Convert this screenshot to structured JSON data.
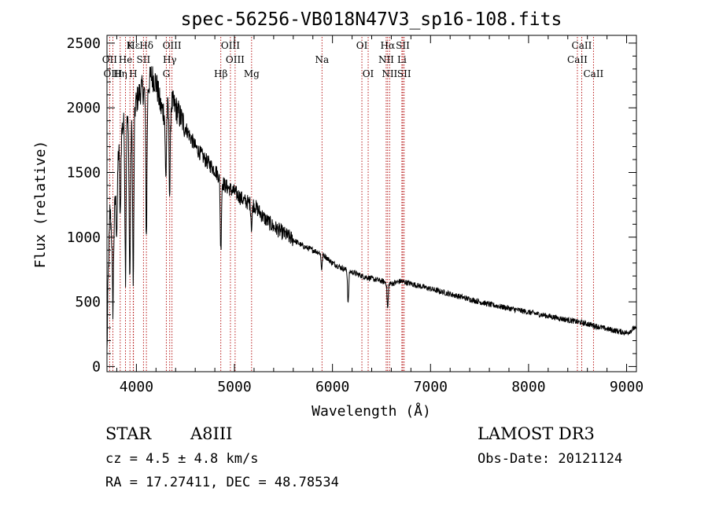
{
  "chart_data": {
    "type": "line",
    "title": "spec-56256-VB018N47V3_sp16-108.fits",
    "xlabel": "Wavelength (Å)",
    "ylabel": "Flux (relative)",
    "xlim": [
      3700,
      9100
    ],
    "ylim": [
      -40,
      2560
    ],
    "xticks": [
      4000,
      5000,
      6000,
      7000,
      8000,
      9000
    ],
    "yticks": [
      0,
      500,
      1000,
      1500,
      2000,
      2500
    ],
    "spectrum_trend": {
      "x": [
        3700,
        3710,
        3730,
        3760,
        3800,
        3830,
        3860,
        3900,
        3930,
        3960,
        4000,
        4050,
        4100,
        4150,
        4200,
        4250,
        4300,
        4350,
        4400,
        4500,
        4600,
        4700,
        4800,
        4860,
        4900,
        5000,
        5100,
        5200,
        5300,
        5400,
        5500,
        5600,
        5700,
        5800,
        5900,
        6000,
        6100,
        6200,
        6300,
        6400,
        6500,
        6600,
        6700,
        6800,
        6900,
        7000,
        7200,
        7400,
        7600,
        7800,
        8000,
        8200,
        8400,
        8600,
        8800,
        9000,
        9050,
        9080,
        9100
      ],
      "y": [
        100,
        600,
        1200,
        950,
        1500,
        1800,
        1850,
        1950,
        1750,
        1900,
        2050,
        2150,
        2100,
        2250,
        2200,
        2000,
        1950,
        2050,
        2000,
        1850,
        1700,
        1600,
        1520,
        1450,
        1400,
        1350,
        1280,
        1250,
        1150,
        1080,
        1030,
        980,
        930,
        900,
        870,
        800,
        760,
        730,
        700,
        680,
        660,
        640,
        660,
        640,
        620,
        600,
        560,
        520,
        480,
        450,
        420,
        390,
        360,
        330,
        290,
        260,
        280,
        300,
        280
      ]
    },
    "absorption_lines": [
      {
        "x": 3760,
        "depth": 500
      },
      {
        "x": 3800,
        "depth": 450
      },
      {
        "x": 3835,
        "depth": 700
      },
      {
        "x": 3889,
        "depth": 1200
      },
      {
        "x": 3933,
        "depth": 1100
      },
      {
        "x": 3968,
        "depth": 1300
      },
      {
        "x": 4102,
        "depth": 1100
      },
      {
        "x": 4300,
        "depth": 500
      },
      {
        "x": 4340,
        "depth": 700
      },
      {
        "x": 4861,
        "depth": 550
      },
      {
        "x": 5175,
        "depth": 180
      },
      {
        "x": 5890,
        "depth": 120
      },
      {
        "x": 6160,
        "depth": 250
      },
      {
        "x": 6563,
        "depth": 200
      }
    ],
    "line_markers": [
      {
        "label": "Hε",
        "x": 3970,
        "row": 0
      },
      {
        "label": "Hδ",
        "x": 4102,
        "row": 0
      },
      {
        "label": "K",
        "x": 3934,
        "row": 0
      },
      {
        "label": "OIII",
        "x": 4363,
        "row": 0
      },
      {
        "label": "OIII",
        "x": 4959,
        "row": 0
      },
      {
        "label": "OI",
        "x": 6300,
        "row": 0
      },
      {
        "label": "Hα",
        "x": 6563,
        "row": 0
      },
      {
        "label": "SII",
        "x": 6717,
        "row": 0
      },
      {
        "label": "CaII",
        "x": 8542,
        "row": 0
      },
      {
        "label": "OII",
        "x": 3727,
        "row": 1
      },
      {
        "label": "He",
        "x": 3889,
        "row": 1
      },
      {
        "label": "SII",
        "x": 4072,
        "row": 1
      },
      {
        "label": "Hγ",
        "x": 4340,
        "row": 1
      },
      {
        "label": "OIII",
        "x": 5007,
        "row": 1
      },
      {
        "label": "Na",
        "x": 5893,
        "row": 1
      },
      {
        "label": "NII",
        "x": 6548,
        "row": 1
      },
      {
        "label": "Li",
        "x": 6708,
        "row": 1
      },
      {
        "label": "CaII",
        "x": 8498,
        "row": 1
      },
      {
        "label": "OIII",
        "x": 3760,
        "row": 2
      },
      {
        "label": "Hη",
        "x": 3835,
        "row": 2
      },
      {
        "label": "H",
        "x": 3968,
        "row": 2
      },
      {
        "label": "G",
        "x": 4305,
        "row": 2
      },
      {
        "label": "Hβ",
        "x": 4861,
        "row": 2
      },
      {
        "label": "Mg",
        "x": 5175,
        "row": 2
      },
      {
        "label": "OI",
        "x": 6364,
        "row": 2
      },
      {
        "label": "NII",
        "x": 6583,
        "row": 2
      },
      {
        "label": "SII",
        "x": 6731,
        "row": 2
      },
      {
        "label": "CaII",
        "x": 8662,
        "row": 2
      }
    ],
    "colors": {
      "spectrum": "#000000",
      "markers": "#b00000",
      "axes": "#000000"
    }
  },
  "info": {
    "class": "STAR",
    "subclass": "A8III",
    "survey": "LAMOST DR3",
    "cz": "cz = 4.5 ± 4.8 km/s",
    "obs_date": "Obs-Date: 20121124",
    "radec": "RA =  17.27411, DEC =  48.78534"
  }
}
